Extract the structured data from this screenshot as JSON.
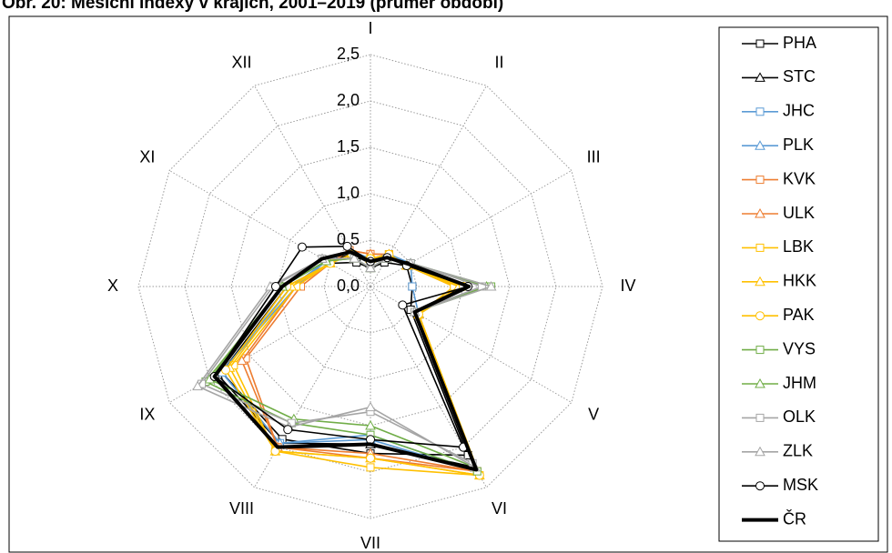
{
  "chart_data": {
    "type": "radar",
    "title": "Obr. 20: Měsíční indexy v krajích, 2001–2019 (průměr období)",
    "categories": [
      "I",
      "II",
      "III",
      "IV",
      "V",
      "VI",
      "VII",
      "VIII",
      "IX",
      "X",
      "XI",
      "XII"
    ],
    "rlim": [
      0,
      2.5
    ],
    "rticks": [
      {
        "value": 0,
        "label": "0,0"
      },
      {
        "value": 0.5,
        "label": "0,5"
      },
      {
        "value": 1,
        "label": "1,0"
      },
      {
        "value": 1.5,
        "label": "1,5"
      },
      {
        "value": 2,
        "label": "2,0"
      },
      {
        "value": 2.5,
        "label": "2,5"
      }
    ],
    "grid": true,
    "legend": "right",
    "series": [
      {
        "name": "PHA",
        "color": "#000000",
        "marker": "square",
        "values": [
          0.2,
          0.3,
          0.45,
          0.45,
          0.5,
          2.1,
          1.8,
          1.9,
          1.85,
          0.9,
          0.5,
          0.3
        ]
      },
      {
        "name": "STC",
        "color": "#000000",
        "marker": "triangle",
        "values": [
          0.25,
          0.35,
          0.5,
          1.0,
          0.55,
          2.25,
          1.7,
          1.95,
          1.9,
          0.95,
          0.55,
          0.4
        ]
      },
      {
        "name": "JHC",
        "color": "#5b9bd5",
        "marker": "square",
        "values": [
          0.3,
          0.4,
          0.5,
          0.45,
          0.6,
          2.3,
          1.6,
          1.95,
          1.85,
          0.85,
          0.55,
          0.45
        ]
      },
      {
        "name": "PLK",
        "color": "#5b9bd5",
        "marker": "triangle",
        "values": [
          0.3,
          0.4,
          0.5,
          1.0,
          0.6,
          2.3,
          1.65,
          1.95,
          1.85,
          0.8,
          0.55,
          0.45
        ]
      },
      {
        "name": "KVK",
        "color": "#ed7d31",
        "marker": "square",
        "values": [
          0.35,
          0.4,
          0.45,
          0.9,
          0.6,
          2.3,
          1.85,
          2.0,
          1.55,
          0.75,
          0.5,
          0.45
        ]
      },
      {
        "name": "ULK",
        "color": "#ed7d31",
        "marker": "triangle",
        "values": [
          0.35,
          0.4,
          0.45,
          0.95,
          0.6,
          2.3,
          1.8,
          2.0,
          1.6,
          0.8,
          0.5,
          0.45
        ]
      },
      {
        "name": "LBK",
        "color": "#ffc000",
        "marker": "square",
        "values": [
          0.3,
          0.4,
          0.45,
          0.9,
          0.6,
          2.35,
          1.95,
          2.05,
          1.7,
          0.8,
          0.5,
          0.4
        ]
      },
      {
        "name": "HKK",
        "color": "#ffc000",
        "marker": "triangle",
        "values": [
          0.3,
          0.4,
          0.45,
          0.95,
          0.6,
          2.35,
          1.85,
          2.05,
          1.75,
          0.85,
          0.5,
          0.4
        ]
      },
      {
        "name": "PAK",
        "color": "#ffc000",
        "marker": "circle",
        "values": [
          0.3,
          0.4,
          0.45,
          1.0,
          0.6,
          2.35,
          1.85,
          2.05,
          1.8,
          0.9,
          0.5,
          0.4
        ]
      },
      {
        "name": "VYS",
        "color": "#70ad47",
        "marker": "square",
        "values": [
          0.2,
          0.35,
          0.5,
          1.3,
          0.55,
          2.3,
          1.6,
          1.7,
          2.05,
          0.95,
          0.55,
          0.35
        ]
      },
      {
        "name": "JHM",
        "color": "#70ad47",
        "marker": "triangle",
        "values": [
          0.2,
          0.35,
          0.5,
          1.25,
          0.55,
          2.25,
          1.5,
          1.65,
          2.0,
          0.95,
          0.55,
          0.35
        ]
      },
      {
        "name": "OLK",
        "color": "#a5a5a5",
        "marker": "square",
        "values": [
          0.2,
          0.35,
          0.5,
          1.2,
          0.55,
          2.2,
          1.35,
          1.7,
          2.1,
          1.05,
          0.6,
          0.35
        ]
      },
      {
        "name": "ZLK",
        "color": "#a5a5a5",
        "marker": "triangle",
        "values": [
          0.2,
          0.35,
          0.5,
          1.3,
          0.55,
          2.25,
          1.3,
          1.75,
          2.15,
          1.08,
          0.6,
          0.35
        ]
      },
      {
        "name": "MSK",
        "color": "#000000",
        "marker": "circle",
        "values": [
          0.27,
          0.36,
          0.45,
          1.05,
          0.4,
          2.0,
          1.65,
          1.78,
          1.94,
          1.02,
          0.85,
          0.5
        ]
      },
      {
        "name": "ČR",
        "color": "#000000",
        "marker": "none",
        "line_width": 4,
        "values": [
          0.27,
          0.36,
          0.48,
          1.06,
          0.55,
          2.28,
          1.7,
          2.0,
          1.94,
          0.95,
          0.6,
          0.43
        ]
      }
    ]
  }
}
